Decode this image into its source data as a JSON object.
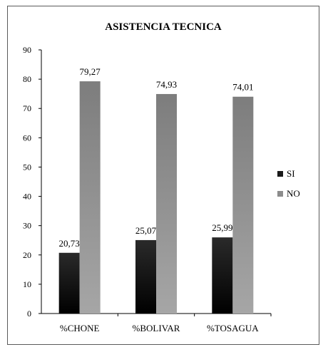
{
  "chart_data": {
    "type": "bar",
    "title": "ASISTENCIA TECNICA",
    "categories": [
      "%CHONE",
      "%BOLIVAR",
      "%TOSAGUA"
    ],
    "series": [
      {
        "name": "SI",
        "values": [
          20.73,
          25.07,
          25.99
        ],
        "labels": [
          "20,73",
          "25,07",
          "25,99"
        ],
        "color": "#1a1a1a"
      },
      {
        "name": "NO",
        "values": [
          79.27,
          74.93,
          74.01
        ],
        "labels": [
          "79,27",
          "74,93",
          "74,01"
        ],
        "color": "#8c8c8c"
      }
    ],
    "ylim": [
      0,
      90
    ],
    "yticks": [
      0,
      10,
      20,
      30,
      40,
      50,
      60,
      70,
      80,
      90
    ],
    "grid": false,
    "legend_position": "right"
  }
}
